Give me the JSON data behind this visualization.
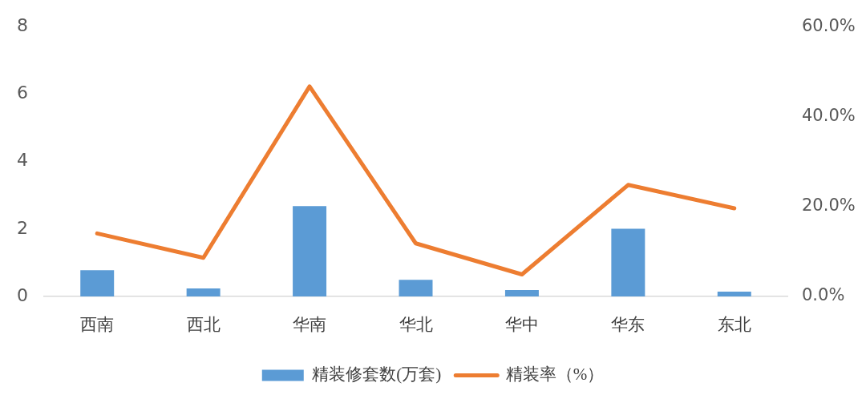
{
  "chart_data": {
    "type": "bar",
    "categories": [
      "西南",
      "西北",
      "华南",
      "华北",
      "华中",
      "华东",
      "东北"
    ],
    "series": [
      {
        "name": "精装修套数(万套)",
        "color": "#5b9bd5",
        "values": [
          0.78,
          0.24,
          2.68,
          0.49,
          0.19,
          2.01,
          0.14
        ]
      },
      {
        "name": "精装率（%）",
        "type": "line",
        "axis": "y2",
        "color": "#ed7d31",
        "values": [
          14.0,
          8.6,
          46.7,
          11.8,
          4.9,
          24.8,
          19.6
        ]
      }
    ],
    "ylim": [
      0,
      8
    ],
    "yticks": [
      0,
      2,
      4,
      6,
      8
    ],
    "y2lim": [
      0,
      60
    ],
    "y2ticks": [
      {
        "value": 0,
        "label": "0.0%"
      },
      {
        "value": 20,
        "label": "20.0%"
      },
      {
        "value": 40,
        "label": "40.0%"
      },
      {
        "value": 60,
        "label": "60.0%"
      }
    ],
    "grid": false,
    "legend": "bottom",
    "marker": "none"
  }
}
